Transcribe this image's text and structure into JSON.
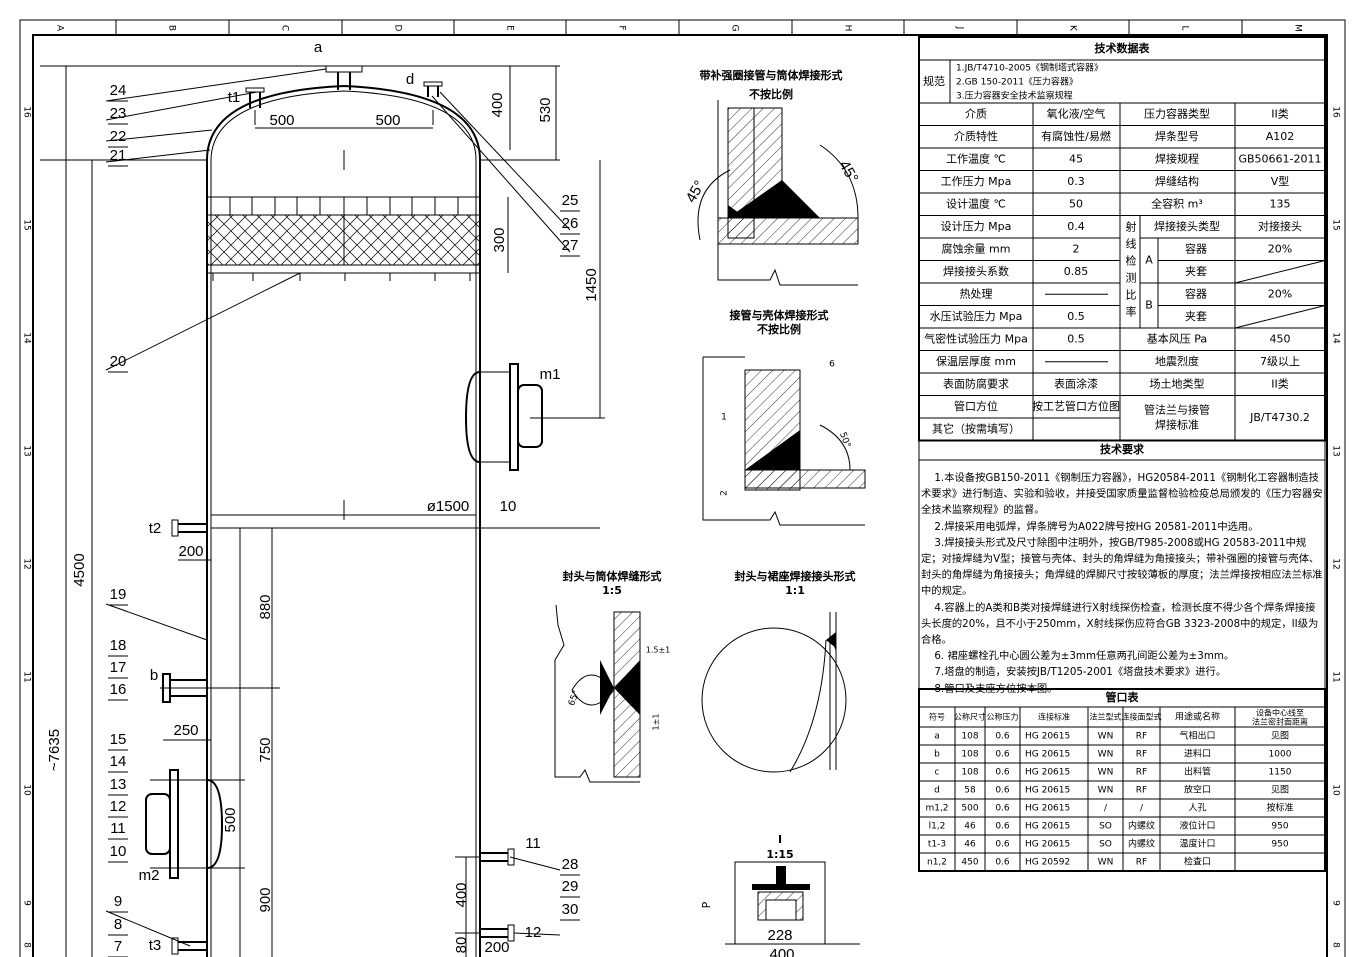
{
  "frame": {
    "columns": [
      "A",
      "B",
      "C",
      "D",
      "E",
      "F",
      "G",
      "H",
      "J",
      "K",
      "L",
      "M"
    ],
    "rows": [
      "16",
      "15",
      "14",
      "13",
      "12",
      "11",
      "10",
      "9",
      "8"
    ]
  },
  "drawing": {
    "nozzle_labels": [
      "a",
      "d",
      "t1",
      "m1",
      "t2",
      "b",
      "m2",
      "t3",
      "11",
      "12"
    ],
    "part_labels": [
      "24",
      "23",
      "22",
      "21",
      "20",
      "19",
      "18",
      "17",
      "16",
      "15",
      "14",
      "13",
      "12",
      "11",
      "10",
      "9",
      "8",
      "7",
      "25",
      "26",
      "27",
      "28",
      "29",
      "30"
    ],
    "dimensions": [
      "500",
      "500",
      "400",
      "530",
      "300",
      "1450",
      "ø1500",
      "10",
      "200",
      "880",
      "250",
      "750",
      "500",
      "900",
      "4500",
      "~7635",
      "400",
      "80",
      "200"
    ]
  },
  "details": {
    "titles": [
      "带补强圈接管与筒体焊接形式",
      "不按比例",
      "接管与壳体焊接形式",
      "不按比例",
      "封头与筒体焊缝形式",
      "1:5",
      "封头与裙座焊接接头形式",
      "1:1",
      "I",
      "1:15"
    ],
    "dimensions": [
      "45°",
      "45°",
      "6",
      "1",
      "50°",
      "2",
      "1.5±1",
      "65°",
      "1±1",
      "P",
      "228",
      "400"
    ]
  },
  "tech_data": {
    "title": "技术数据表",
    "spec_label": "规范",
    "specs": [
      "1.JB/T4710-2005《钢制塔式容器》",
      "2.GB 150-2011《压力容器》",
      "3.压力容器安全技术监察规程"
    ],
    "ray_label": "射线检测比率",
    "ray_groups": [
      "A",
      "B"
    ],
    "rows": [
      [
        "介质",
        "氧化液/空气",
        "压力容器类型",
        "II类"
      ],
      [
        "介质特性",
        "有腐蚀性/易燃",
        "焊条型号",
        "A102"
      ],
      [
        "工作温度 ℃",
        "45",
        "焊接规程",
        "GB50661-2011"
      ],
      [
        "工作压力 Mpa",
        "0.3",
        "焊缝结构",
        "V型"
      ],
      [
        "设计温度 ℃",
        "50",
        "全容积 m³",
        "135"
      ],
      [
        "设计压力 Mpa",
        "0.4",
        "焊接接头类型",
        "对接接头"
      ],
      [
        "腐蚀余量 mm",
        "2",
        "容器",
        "20%"
      ],
      [
        "焊接接头系数",
        "0.85",
        "夹套",
        null
      ],
      [
        "热处理",
        null,
        "容器",
        "20%"
      ],
      [
        "水压试验压力 Mpa",
        "0.5",
        "夹套",
        null
      ],
      [
        "气密性试验压力 Mpa",
        "0.5",
        "基本风压 Pa",
        "450"
      ],
      [
        "保温层厚度 mm",
        null,
        "地震烈度",
        "7级以上"
      ],
      [
        "表面防腐要求",
        "表面涂漆",
        "场土地类型",
        "II类"
      ],
      [
        "管口方位",
        "按工艺管口方位图"
      ],
      [
        "其它（按需填写）"
      ]
    ],
    "flange_standard": {
      "label": [
        "管法兰与接管",
        "焊接标准"
      ],
      "value": "JB/T4730.2"
    }
  },
  "requirements": {
    "title": "技术要求",
    "items": [
      "1.本设备按GB150-2011《钢制压力容器》，HG20584-2011《钢制化工容器制造技术要求》进行制造、实验和验收，并接受国家质量监督检验检疫总局颁发的《压力容器安全技术监察规程》的监督。",
      "2.焊接采用电弧焊，焊条牌号为A022牌号按HG 20581-2011中选用。",
      "3.焊接接头形式及尺寸除图中注明外，按GB/T985-2008或HG 20583-2011中规定；对接焊缝为V型；接管与壳体、封头的角焊缝为角接接头；带补强圈的接管与壳体、封头的角焊缝为角接接头；角焊缝的焊脚尺寸按较薄板的厚度；法兰焊接按相应法兰标准中的规定。",
      "4.容器上的A类和B类对接焊缝进行X射线探伤检查，检测长度不得少各个焊条焊接接头长度的20%，且不小于250mm，X射线探伤应符合GB 3323-2008中的规定，II级为合格。",
      "6. 裙座螺栓孔中心圆公差为±3mm任意两孔间距公差为±3mm。",
      "7.塔盘的制造，安装按JB/T1205-2001《塔盘技术要求》进行。",
      "8.管口及支座方位按本图。"
    ]
  },
  "nozzle_table": {
    "title": "管口表",
    "headers": [
      "符号",
      "公称尺寸",
      "公称压力",
      "连接标准",
      "法兰型式",
      "连接面型式",
      "用途或名称"
    ],
    "distance_header": [
      "设备中心线至",
      "法兰密封面距离"
    ],
    "rows": [
      [
        "a",
        108,
        0.6,
        "HG 20615",
        "WN",
        "RF",
        "气相出口",
        "见图"
      ],
      [
        "b",
        108,
        0.6,
        "HG 20615",
        "WN",
        "RF",
        "进料口",
        1000
      ],
      [
        "c",
        108,
        0.6,
        "HG 20615",
        "WN",
        "RF",
        "出料管",
        1150
      ],
      [
        "d",
        58,
        0.6,
        "HG 20615",
        "WN",
        "RF",
        "放空口",
        "见图"
      ],
      [
        "m1,2",
        500,
        0.6,
        "HG 20615",
        "/",
        "/",
        "人孔",
        "按标准"
      ],
      [
        "l1,2",
        46,
        0.6,
        "HG 20615",
        "SO",
        "内螺纹",
        "液位计口",
        950
      ],
      [
        "t1-3",
        46,
        0.6,
        "HG 20615",
        "SO",
        "内螺纹",
        "温度计口",
        950
      ],
      [
        "n1,2",
        450,
        0.6,
        "HG 20592",
        "WN",
        "RF",
        "检查口"
      ]
    ]
  }
}
